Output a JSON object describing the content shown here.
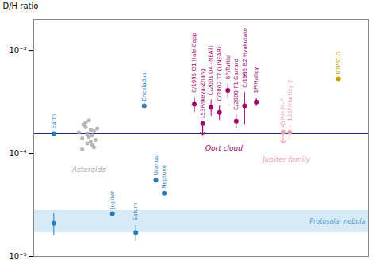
{
  "chart_data": {
    "type": "scatter",
    "ylabel": "D/H ratio",
    "log": "y",
    "xlim": [
      0,
      10
    ],
    "ylim": [
      1e-05,
      0.002
    ],
    "yticks": [
      {
        "value": 1e-05,
        "label": "10⁻⁵"
      },
      {
        "value": 0.0001,
        "label": "10⁻⁴"
      },
      {
        "value": 0.001,
        "label": "10⁻³"
      }
    ],
    "tick_labels": "y",
    "grid": false,
    "band": {
      "range": [
        1.7e-05,
        2.8e-05
      ],
      "label": "Protosolar nebula",
      "color": "#cce6f5"
    },
    "reference_line": {
      "value": 0.000156,
      "color": "#1a237e"
    },
    "series": [
      {
        "color": "#2c7bb6",
        "x": [
          0.6,
          2.35,
          3.05,
          3.65,
          3.9,
          3.3,
          0.6
        ],
        "values": [
          0.000156,
          2.6e-05,
          1.7e-05,
          5.5e-05,
          4.1e-05,
          0.00029,
          2.1e-05
        ],
        "labels": [
          "Earth",
          "Jupiter",
          "Saturn",
          "Uranus",
          "Neptune",
          "Enceladus",
          null
        ],
        "yerr_lo": [
          0,
          0,
          3e-06,
          0,
          0,
          0,
          5e-06
        ],
        "yerr_hi": [
          0,
          0,
          3e-06,
          0,
          0,
          0,
          5e-06
        ]
      },
      {
        "label": "Asteroids",
        "color": "#aaaaaa",
        "x": [
          1.35,
          1.45,
          1.55,
          1.6,
          1.65,
          1.7,
          1.75,
          1.8,
          1.85,
          1.9,
          1.5,
          1.6,
          1.7,
          1.55,
          1.75,
          1.65,
          1.45,
          1.8
        ],
        "values": [
          0.00016,
          0.00014,
          0.00018,
          0.000155,
          0.000145,
          0.00017,
          0.00015,
          0.000165,
          0.000135,
          0.000175,
          0.00019,
          0.000125,
          0.00013,
          0.0002,
          0.00012,
          0.00021,
          0.00011,
          0.000115
        ]
      },
      {
        "label": "Oort cloud",
        "color": "#a0006e",
        "x": [
          4.8,
          5.05,
          5.3,
          5.55,
          5.8,
          6.05,
          6.3,
          6.65
        ],
        "values": [
          0.0003,
          0.000195,
          0.00028,
          0.00025,
          0.00041,
          0.000206,
          0.00029,
          0.000316
        ],
        "labels": [
          "C/1995 O1 Hale-Bopp",
          "153P/Ikeya-Zhang",
          "C/2001 Q4 (NEAT)",
          "C/2002 T7 (LINEAR)",
          "8P/Tuttle",
          "C/2009 P1 Garrard",
          "C/1995 B2 Hyakutake",
          "1P/Halley"
        ],
        "yerr_lo": [
          5e-05,
          null,
          5e-05,
          4e-05,
          6e-05,
          3e-05,
          0.0001,
          3e-05
        ],
        "yerr_hi": [
          5e-05,
          null,
          5e-05,
          4e-05,
          6e-05,
          3e-05,
          0.0001,
          3e-05
        ],
        "upper_limit": [
          false,
          true,
          false,
          false,
          false,
          false,
          false,
          false
        ]
      },
      {
        "label": "Jupiter family",
        "color": "#e8a0b0",
        "x": [
          7.45,
          7.65
        ],
        "values": [
          0.000161,
          0.000161
        ],
        "labels": [
          "45P/H-M-P",
          "103P/Hartley 2"
        ],
        "yerr_lo": [
          null,
          2.4e-05
        ],
        "yerr_hi": [
          null,
          2.4e-05
        ],
        "upper_limit": [
          true,
          false
        ]
      },
      {
        "color": "#c8a000",
        "x": [
          9.1
        ],
        "values": [
          0.00053
        ],
        "labels": [
          "67P/C-G"
        ]
      }
    ]
  }
}
